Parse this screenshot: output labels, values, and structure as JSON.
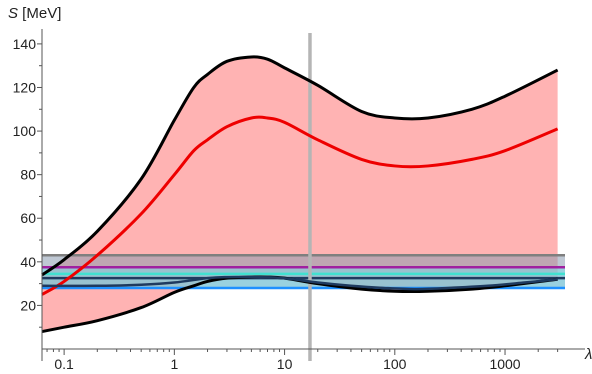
{
  "chart_data": {
    "type": "area",
    "title": "",
    "ylabel_symbol": "S",
    "ylabel_unit": " [MeV]",
    "xlabel": "λ",
    "x_scale": "log",
    "xlim": [
      0.063,
      3500
    ],
    "ylim": [
      0,
      145
    ],
    "x_ticks": [
      {
        "value": 0.1,
        "label": "0.1"
      },
      {
        "value": 1,
        "label": "1"
      },
      {
        "value": 10,
        "label": "10"
      },
      {
        "value": 100,
        "label": "100"
      },
      {
        "value": 1000,
        "label": "1000"
      }
    ],
    "y_ticks": [
      {
        "value": 20,
        "label": "20"
      },
      {
        "value": 40,
        "label": "40"
      },
      {
        "value": 60,
        "label": "60"
      },
      {
        "value": 80,
        "label": "80"
      },
      {
        "value": 100,
        "label": "100"
      },
      {
        "value": 120,
        "label": "120"
      },
      {
        "value": 140,
        "label": "140"
      }
    ],
    "vertical_line_x": 17,
    "horizontal_lines": [
      {
        "y": 43,
        "color": "#7f7f7f"
      },
      {
        "y": 37.5,
        "color": "#a020a0"
      },
      {
        "y": 34.5,
        "color": "#40e0d0"
      },
      {
        "y": 32.5,
        "color": "#1e3a5f"
      },
      {
        "y": 28,
        "color": "#1e90ff"
      }
    ],
    "bands": [
      {
        "y0": 28,
        "y1": 43,
        "color": "#8a9ab0"
      },
      {
        "y0": 28,
        "y1": 37,
        "color": "#7ad8e8"
      }
    ],
    "series": [
      {
        "role": "upper",
        "color": "#000000",
        "x": [
          0.063,
          0.1,
          0.2,
          0.5,
          1,
          1.5,
          2,
          3,
          5,
          7,
          10,
          20,
          50,
          100,
          200,
          500,
          1000,
          3000
        ],
        "y": [
          34,
          41,
          54,
          78,
          105,
          120,
          126,
          132,
          134,
          133,
          129,
          121,
          109,
          106,
          106,
          110,
          116,
          128
        ]
      },
      {
        "role": "central",
        "color": "#ee0000",
        "x": [
          0.063,
          0.1,
          0.2,
          0.5,
          1,
          1.5,
          2,
          3,
          5,
          7,
          10,
          20,
          50,
          100,
          200,
          500,
          1000,
          3000
        ],
        "y": [
          25,
          31,
          43,
          62,
          80,
          91,
          96,
          102,
          106,
          106,
          104,
          96,
          87,
          84,
          84,
          87,
          91,
          101
        ]
      },
      {
        "role": "lower",
        "color": "#000000",
        "x": [
          0.063,
          0.1,
          0.2,
          0.5,
          1,
          1.5,
          2,
          3,
          5,
          7,
          10,
          20,
          50,
          100,
          200,
          500,
          1000,
          3000
        ],
        "y": [
          8,
          10,
          13,
          19,
          26,
          29,
          31,
          32.5,
          33,
          33,
          32.5,
          30,
          27.5,
          26.5,
          26.5,
          27.5,
          29,
          32
        ]
      },
      {
        "role": "inner-lower",
        "color": "#1e3a5f",
        "x": [
          0.063,
          0.2,
          0.5,
          1,
          2,
          3,
          5,
          8,
          12,
          20,
          40,
          80,
          150,
          300,
          700,
          1500,
          3000
        ],
        "y": [
          29,
          29,
          29.5,
          30.5,
          32.5,
          33,
          33,
          32.8,
          32,
          30.5,
          29,
          28,
          27.5,
          28,
          29,
          30.5,
          32
        ]
      }
    ],
    "fill_color": "#ffb3b3",
    "grid": false,
    "legend": "none"
  }
}
